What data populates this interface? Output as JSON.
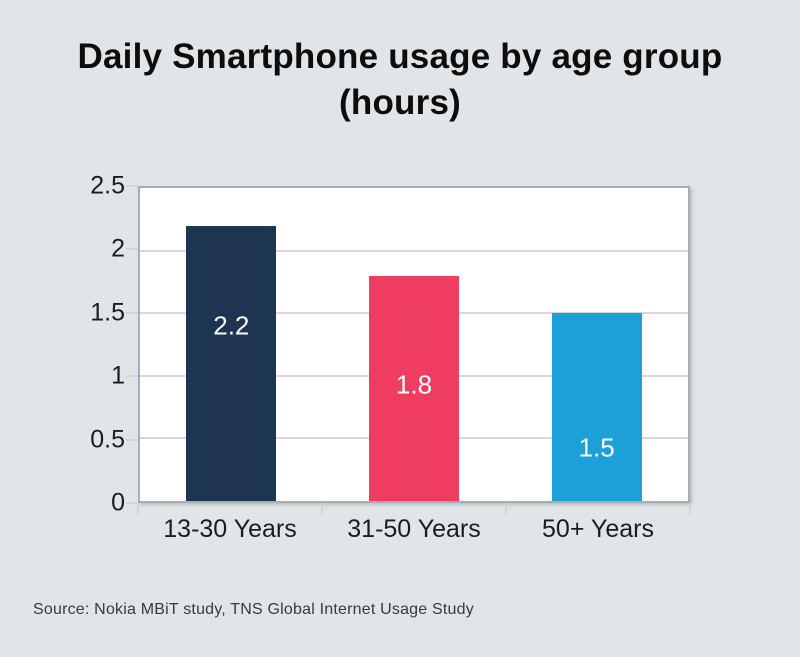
{
  "title": {
    "line1": "Daily Smartphone usage by age group",
    "line2": "(hours)"
  },
  "source": "Source: Nokia MBiT study, TNS Global Internet Usage Study",
  "chart_data": {
    "type": "bar",
    "title": "Daily Smartphone usage by age group (hours)",
    "categories": [
      "13-30 Years",
      "31-50 Years",
      "50+ Years"
    ],
    "values": [
      2.2,
      1.8,
      1.5
    ],
    "value_labels": [
      "2.2",
      "1.8",
      "1.5"
    ],
    "bar_colors": [
      "#1d3551",
      "#ee3d60",
      "#1ba0d8"
    ],
    "xlabel": "",
    "ylabel": "",
    "ylim": [
      0,
      2.5
    ],
    "yticks": [
      0,
      0.5,
      1,
      1.5,
      2,
      2.5
    ],
    "ytick_labels": [
      "0",
      "0.5",
      "1",
      "1.5",
      "2",
      "2.5"
    ],
    "grid": true,
    "legend": false,
    "plot_background": "#ffffff",
    "page_background": "#e1e5e8",
    "gridline_color": "#d8d8d8",
    "tick_color": "#c9d6e4",
    "axis_border_color": "#a9acb0",
    "value_label_color": "#ffffff"
  }
}
